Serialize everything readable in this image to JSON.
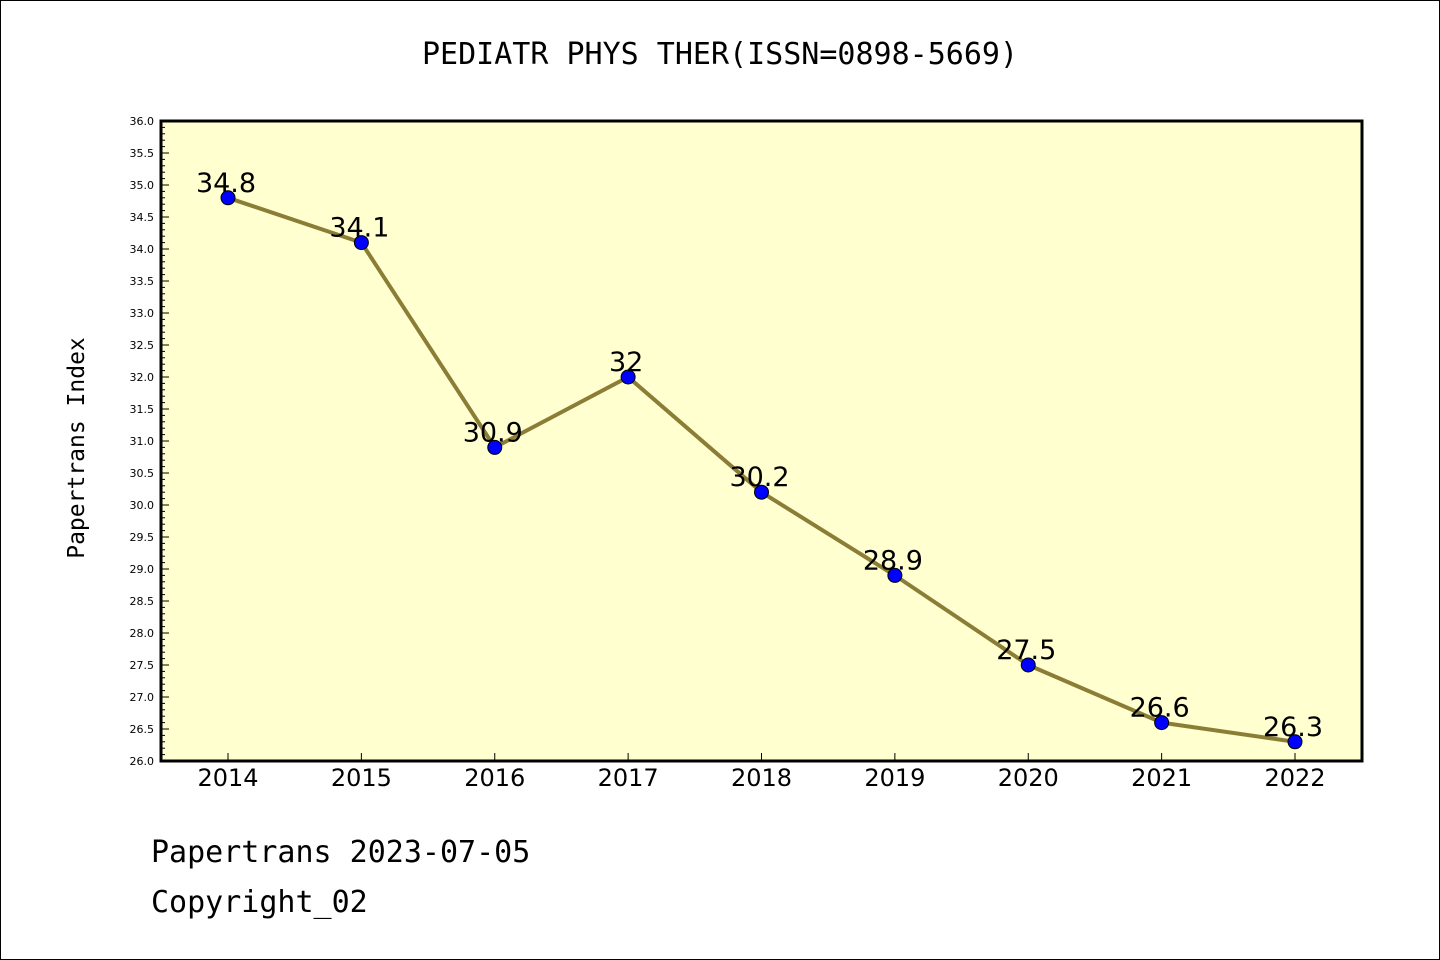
{
  "chart_data": {
    "type": "line",
    "title": "PEDIATR PHYS THER(ISSN=0898-5669)",
    "xlabel": "",
    "ylabel": "Papertrans Index",
    "categories": [
      "2014",
      "2015",
      "2016",
      "2017",
      "2018",
      "2019",
      "2020",
      "2021",
      "2022"
    ],
    "series": [
      {
        "values": [
          34.8,
          34.1,
          30.9,
          32,
          30.2,
          28.9,
          27.5,
          26.6,
          26.3
        ]
      }
    ],
    "data_labels": [
      "34.8",
      "34.1",
      "30.9",
      "32",
      "30.2",
      "28.9",
      "27.5",
      "26.6",
      "26.3"
    ],
    "ylim": [
      26.0,
      36.0
    ],
    "y_major_step": 0.5,
    "y_tick_labels": [
      "26.0",
      "26.5",
      "27.0",
      "27.5",
      "28.0",
      "28.5",
      "29.0",
      "29.5",
      "30.0",
      "30.5",
      "31.0",
      "31.5",
      "32.0",
      "32.5",
      "33.0",
      "33.5",
      "34.0",
      "34.5",
      "35.0",
      "35.5",
      "36.0"
    ],
    "grid": false,
    "legend": "none",
    "colors": {
      "plot_background": "#ffffd0",
      "line": "#8b7d36",
      "marker": "#0000ff",
      "marker_edge": "#000000"
    }
  },
  "footer": {
    "date_line": "Papertrans 2023-07-05",
    "copyright_line": "Copyright_02"
  }
}
